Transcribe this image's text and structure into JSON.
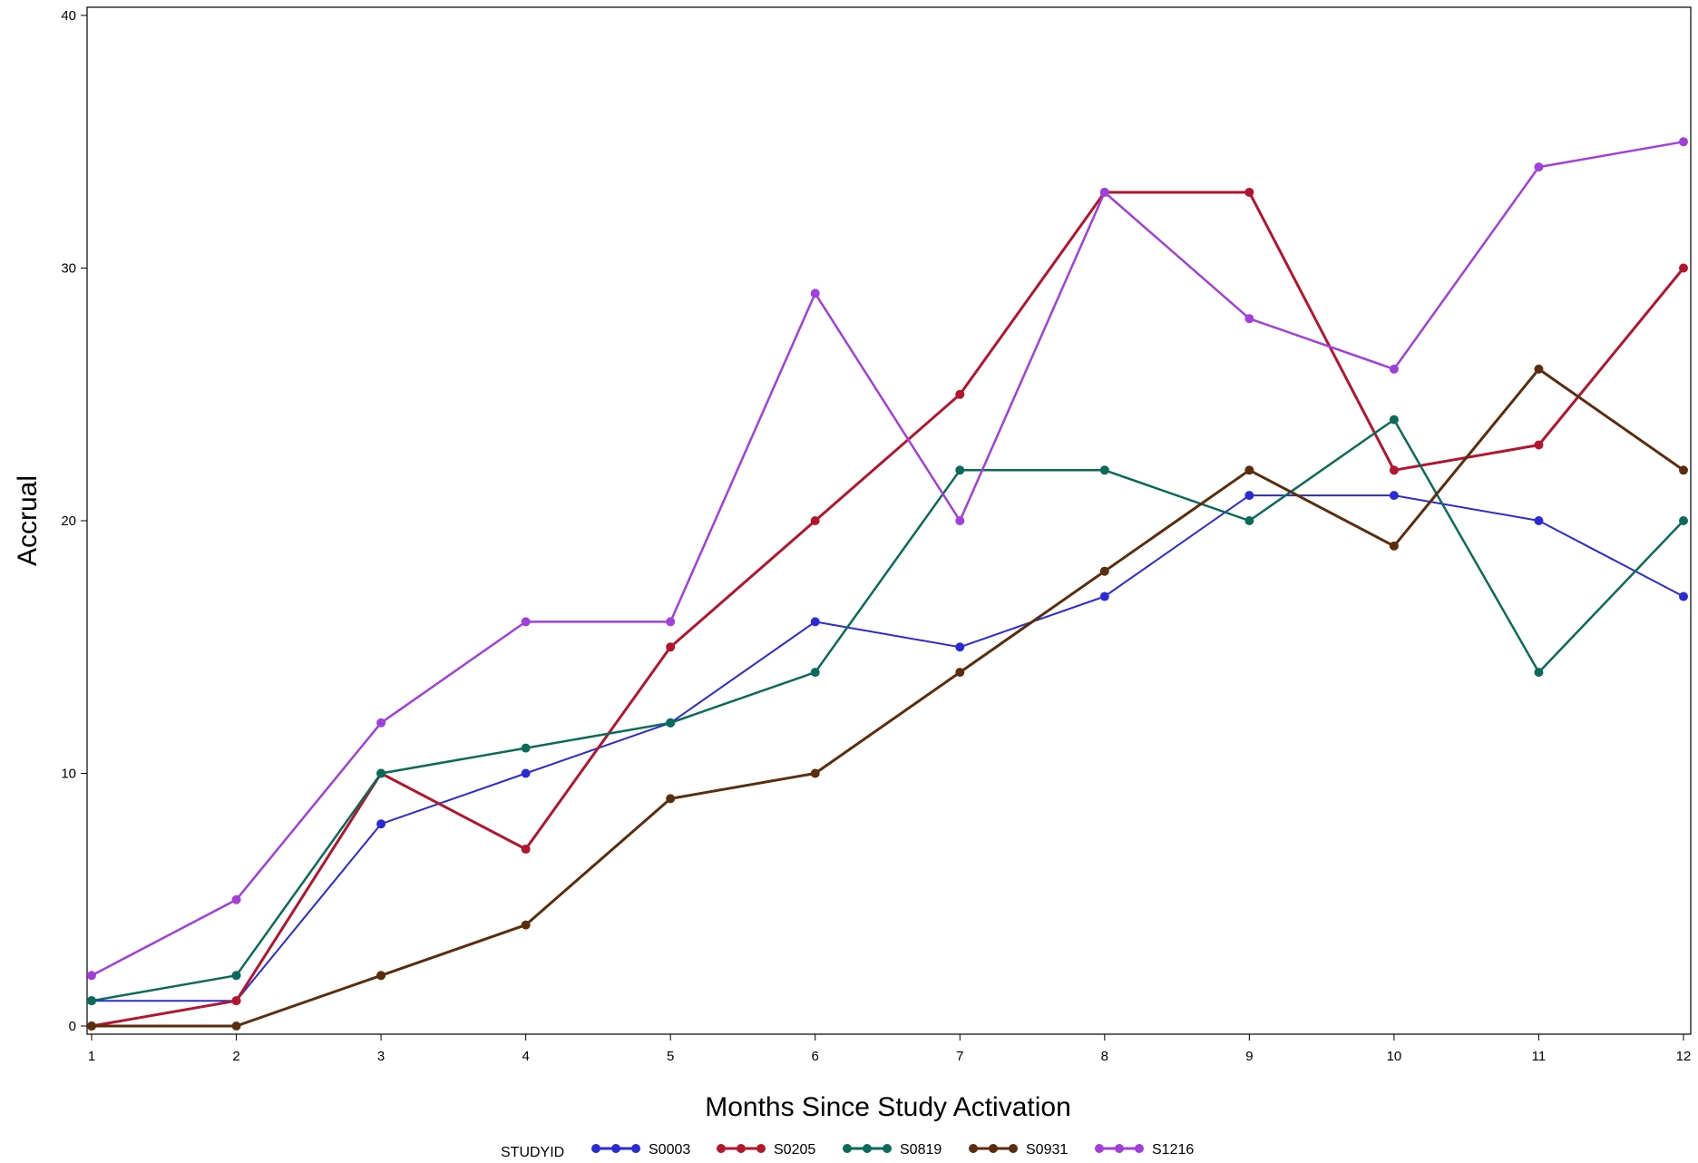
{
  "chart_data": {
    "type": "line",
    "title": "",
    "xlabel": "Months Since Study Activation",
    "ylabel": "Accrual",
    "x": [
      1,
      2,
      3,
      4,
      5,
      6,
      7,
      8,
      9,
      10,
      11,
      12
    ],
    "xlim": [
      1,
      12
    ],
    "ylim": [
      0,
      40
    ],
    "x_ticks": [
      "1",
      "2",
      "3",
      "4",
      "5",
      "6",
      "7",
      "8",
      "9",
      "10",
      "11",
      "12"
    ],
    "y_ticks": [
      "0",
      "10",
      "20",
      "30",
      "40"
    ],
    "grid": false,
    "legend_title": "STUDYID",
    "legend_position": "bottom",
    "series": [
      {
        "name": "S0003",
        "color": "#2b2bd6",
        "values": [
          1,
          1,
          8,
          10,
          12,
          16,
          15,
          17,
          21,
          21,
          20,
          17
        ]
      },
      {
        "name": "S0205",
        "color": "#b3152e",
        "values": [
          0,
          1,
          10,
          7,
          15,
          20,
          25,
          33,
          33,
          22,
          23,
          30
        ]
      },
      {
        "name": "S0819",
        "color": "#0b6b5b",
        "values": [
          1,
          2,
          10,
          11,
          12,
          14,
          22,
          22,
          20,
          24,
          14,
          20
        ]
      },
      {
        "name": "S0931",
        "color": "#5a2d0c",
        "values": [
          0,
          0,
          2,
          4,
          9,
          10,
          14,
          18,
          22,
          19,
          26,
          22
        ]
      },
      {
        "name": "S1216",
        "color": "#a23fdc",
        "values": [
          2,
          5,
          12,
          16,
          16,
          29,
          20,
          33,
          28,
          26,
          34,
          35
        ]
      }
    ]
  }
}
